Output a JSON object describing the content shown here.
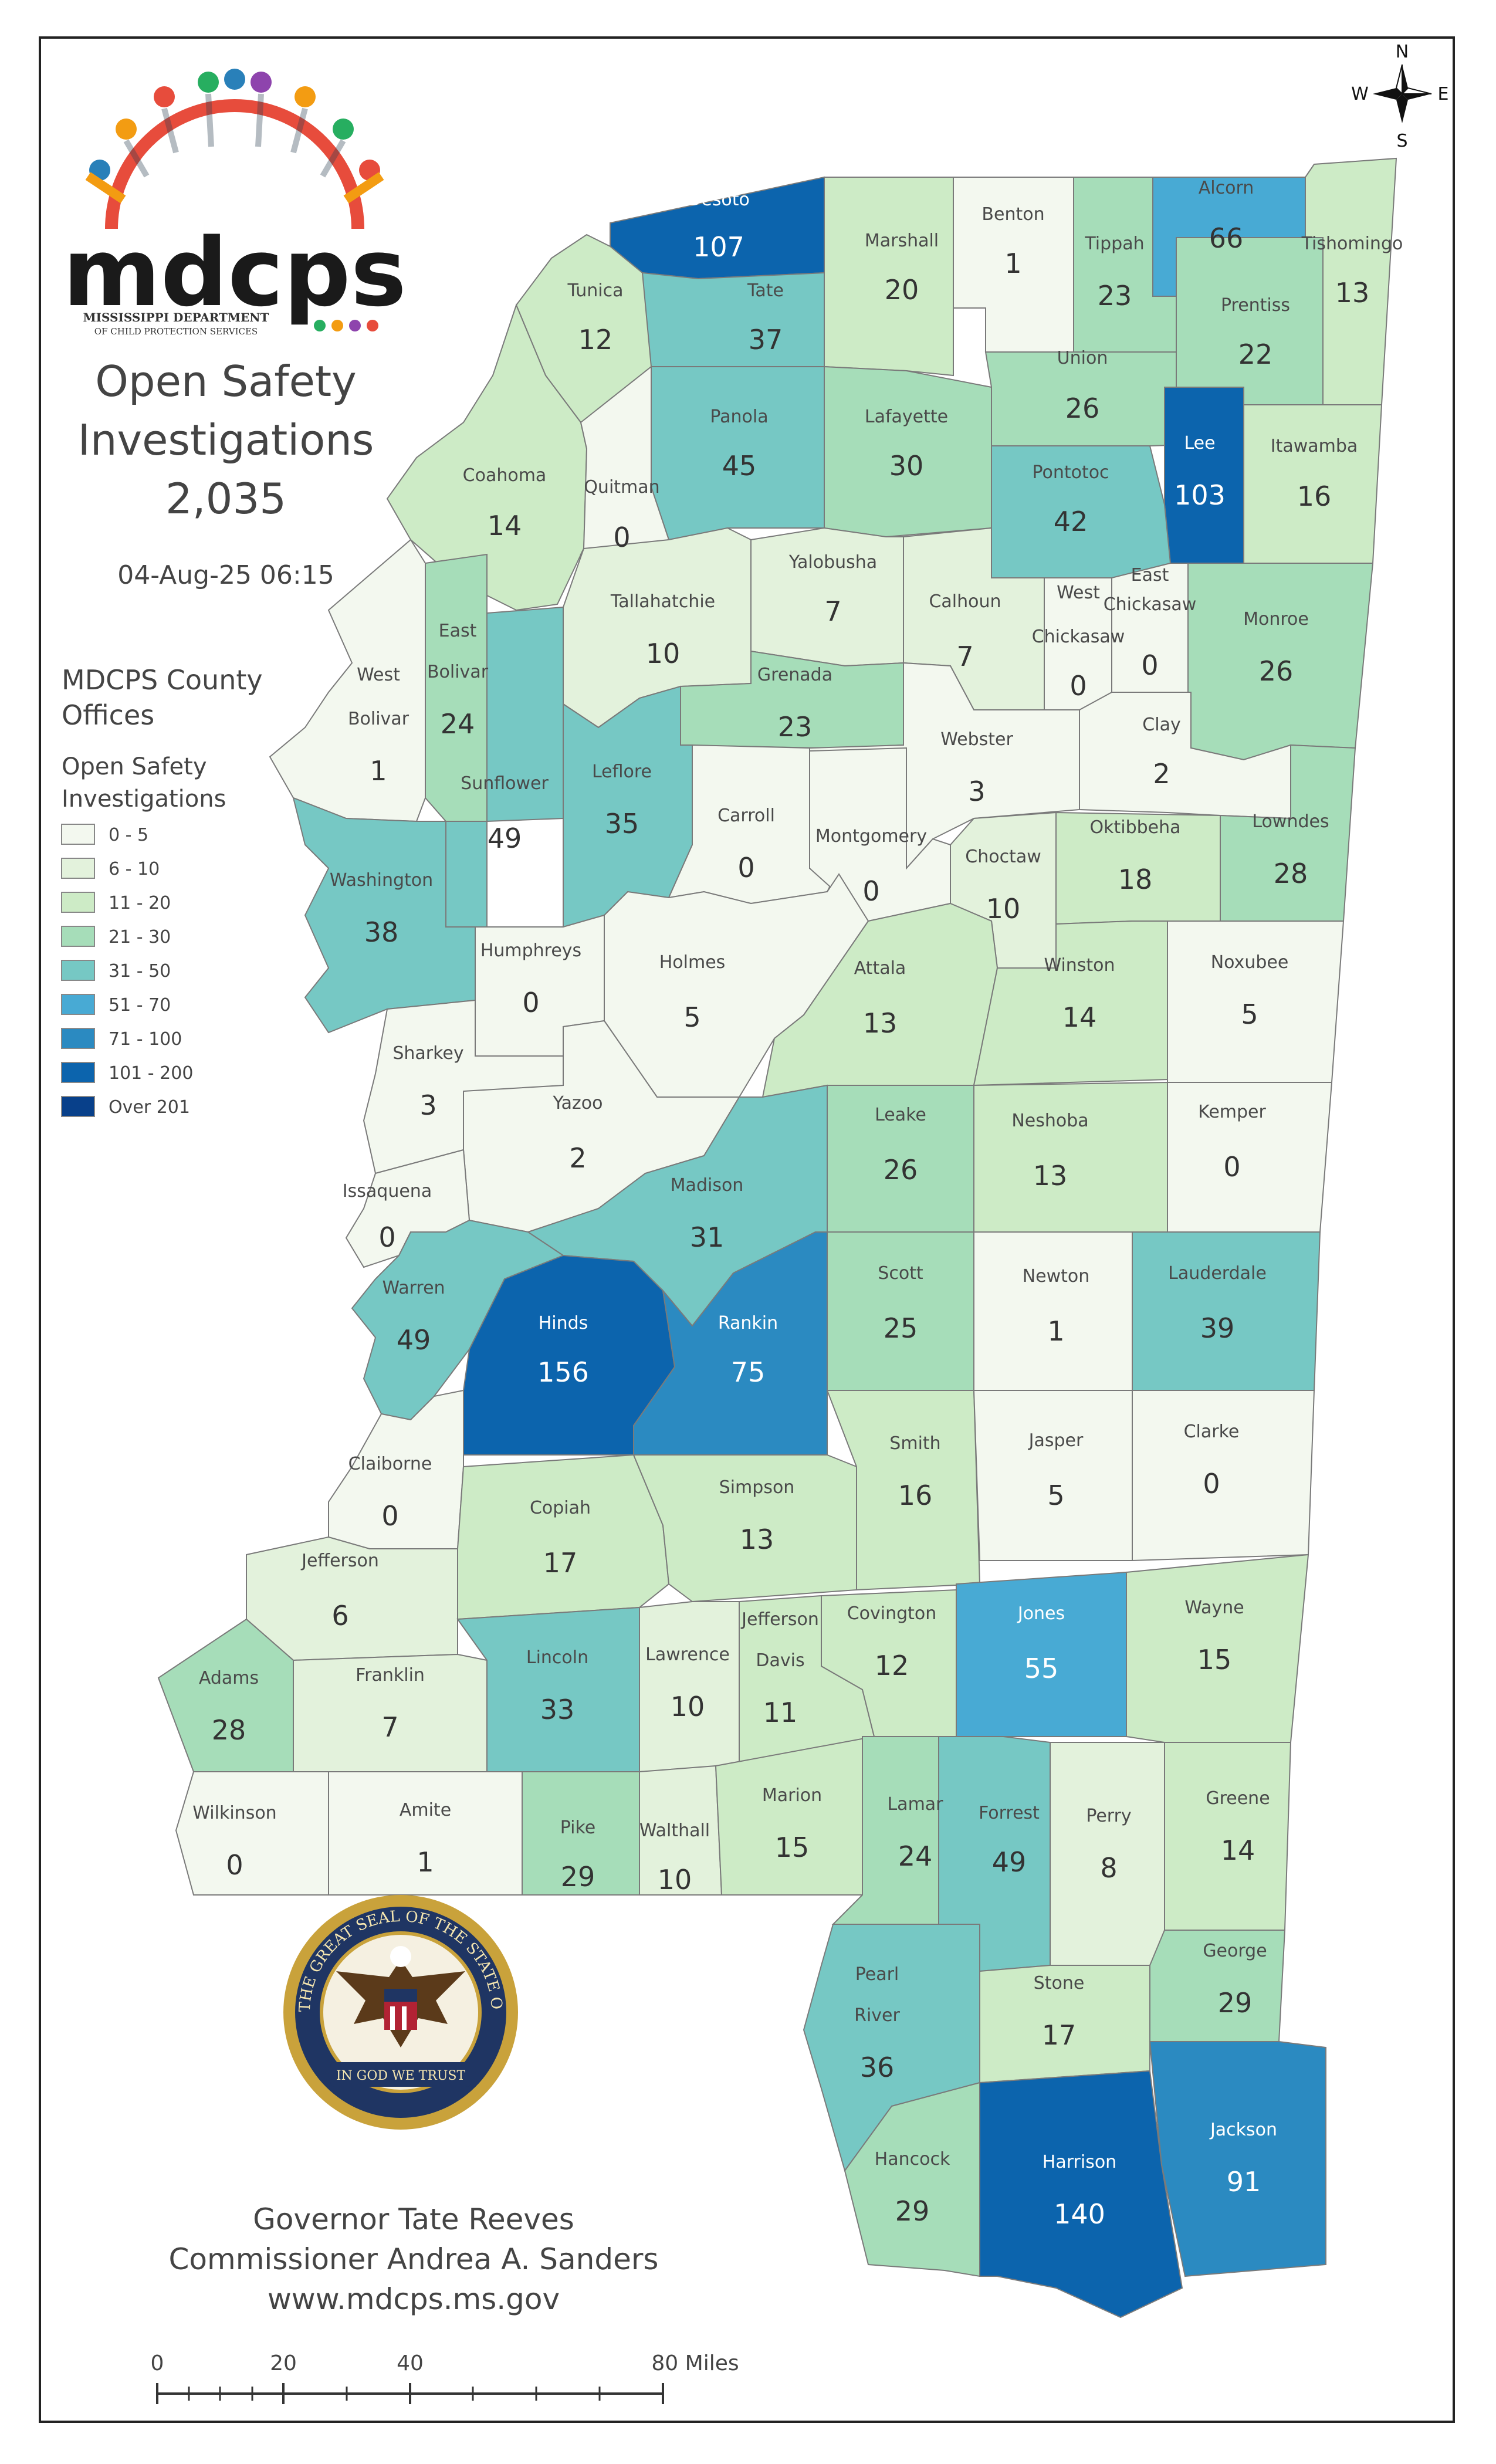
{
  "logo": {
    "wordmark": "mdcps",
    "line1": "MISSISSIPPI DEPARTMENT",
    "line2": "OF CHILD PROTECTION SERVICES"
  },
  "title": {
    "line1": "Open Safety",
    "line2": "Investigations",
    "total": "2,035"
  },
  "timestamp": "04-Aug-25 06:15",
  "legend": {
    "heading1": "MDCPS County",
    "heading1b": "Offices",
    "heading2": "Open Safety",
    "heading2b": "Investigations",
    "items": [
      {
        "label": "0 - 5",
        "color": "#f3f8ef"
      },
      {
        "label": "6 - 10",
        "color": "#e3f2dc"
      },
      {
        "label": "11 - 20",
        "color": "#cdebc6"
      },
      {
        "label": "21 - 30",
        "color": "#a6ddb9"
      },
      {
        "label": "31 - 50",
        "color": "#76c8c4"
      },
      {
        "label": "51 - 70",
        "color": "#48aad4"
      },
      {
        "label": "71 - 100",
        "color": "#2b8ac1"
      },
      {
        "label": "101 - 200",
        "color": "#0c64ad"
      },
      {
        "label": "Over 201",
        "color": "#08408a"
      }
    ]
  },
  "compass": {
    "n": "N",
    "s": "S",
    "e": "E",
    "w": "W"
  },
  "seal": {
    "outer_text": "THE GREAT SEAL OF THE STATE OF MISSISSIPPI",
    "motto": "IN GOD WE TRUST"
  },
  "footer": {
    "governor": "Governor Tate Reeves",
    "commissioner": "Commissioner Andrea A. Sanders",
    "website": "www.mdcps.ms.gov"
  },
  "scalebar": {
    "t0": "0",
    "t1": "20",
    "t2": "40",
    "t3": "80 Miles"
  },
  "counties": [
    {
      "name": "Desoto",
      "value": 107,
      "color": "#0c64ad",
      "light": true
    },
    {
      "name": "Marshall",
      "value": 20,
      "color": "#cdebc6"
    },
    {
      "name": "Benton",
      "value": 1,
      "color": "#f3f8ef"
    },
    {
      "name": "Tippah",
      "value": 23,
      "color": "#a6ddb9"
    },
    {
      "name": "Alcorn",
      "value": 66,
      "color": "#48aad4"
    },
    {
      "name": "Tishomingo",
      "value": 13,
      "color": "#cdebc6"
    },
    {
      "name": "Tunica",
      "value": 12,
      "color": "#cdebc6"
    },
    {
      "name": "Tate",
      "value": 37,
      "color": "#76c8c4"
    },
    {
      "name": "Prentiss",
      "value": 22,
      "color": "#a6ddb9"
    },
    {
      "name": "Union",
      "value": 26,
      "color": "#a6ddb9"
    },
    {
      "name": "Panola",
      "value": 45,
      "color": "#76c8c4"
    },
    {
      "name": "Lafayette",
      "value": 30,
      "color": "#a6ddb9"
    },
    {
      "name": "Lee",
      "value": 103,
      "color": "#0c64ad",
      "light": true
    },
    {
      "name": "Itawamba",
      "value": 16,
      "color": "#cdebc6"
    },
    {
      "name": "Coahoma",
      "value": 14,
      "color": "#cdebc6"
    },
    {
      "name": "Quitman",
      "value": 0,
      "color": "#f3f8ef"
    },
    {
      "name": "Pontotoc",
      "value": 42,
      "color": "#76c8c4"
    },
    {
      "name": "Yalobusha",
      "value": 7,
      "color": "#e3f2dc"
    },
    {
      "name": "Calhoun",
      "value": 7,
      "color": "#e3f2dc"
    },
    {
      "name": "West Chickasaw",
      "value": 0,
      "color": "#f3f8ef"
    },
    {
      "name": "East Chickasaw",
      "value": 0,
      "color": "#f3f8ef"
    },
    {
      "name": "Monroe",
      "value": 26,
      "color": "#a6ddb9"
    },
    {
      "name": "Tallahatchie",
      "value": 10,
      "color": "#e3f2dc"
    },
    {
      "name": "East Bolivar",
      "value": 24,
      "color": "#a6ddb9"
    },
    {
      "name": "West Bolivar",
      "value": 1,
      "color": "#f3f8ef"
    },
    {
      "name": "Grenada",
      "value": 23,
      "color": "#a6ddb9"
    },
    {
      "name": "Webster",
      "value": 3,
      "color": "#f3f8ef"
    },
    {
      "name": "Clay",
      "value": 2,
      "color": "#f3f8ef"
    },
    {
      "name": "Sunflower",
      "value": 49,
      "color": "#76c8c4"
    },
    {
      "name": "Leflore",
      "value": 35,
      "color": "#76c8c4"
    },
    {
      "name": "Carroll",
      "value": 0,
      "color": "#f3f8ef"
    },
    {
      "name": "Montgomery",
      "value": 0,
      "color": "#f3f8ef"
    },
    {
      "name": "Choctaw",
      "value": 10,
      "color": "#e3f2dc"
    },
    {
      "name": "Oktibbeha",
      "value": 18,
      "color": "#cdebc6"
    },
    {
      "name": "Lowndes",
      "value": 28,
      "color": "#a6ddb9"
    },
    {
      "name": "Washington",
      "value": 38,
      "color": "#76c8c4"
    },
    {
      "name": "Humphreys",
      "value": 0,
      "color": "#f3f8ef"
    },
    {
      "name": "Holmes",
      "value": 5,
      "color": "#f3f8ef"
    },
    {
      "name": "Attala",
      "value": 13,
      "color": "#cdebc6"
    },
    {
      "name": "Winston",
      "value": 14,
      "color": "#cdebc6"
    },
    {
      "name": "Noxubee",
      "value": 5,
      "color": "#f3f8ef"
    },
    {
      "name": "Sharkey",
      "value": 3,
      "color": "#f3f8ef"
    },
    {
      "name": "Yazoo",
      "value": 2,
      "color": "#f3f8ef"
    },
    {
      "name": "Leake",
      "value": 26,
      "color": "#a6ddb9"
    },
    {
      "name": "Neshoba",
      "value": 13,
      "color": "#cdebc6"
    },
    {
      "name": "Kemper",
      "value": 0,
      "color": "#f3f8ef"
    },
    {
      "name": "Issaquena",
      "value": 0,
      "color": "#f3f8ef"
    },
    {
      "name": "Madison",
      "value": 31,
      "color": "#76c8c4"
    },
    {
      "name": "Warren",
      "value": 49,
      "color": "#76c8c4"
    },
    {
      "name": "Hinds",
      "value": 156,
      "color": "#0c64ad",
      "light": true
    },
    {
      "name": "Rankin",
      "value": 75,
      "color": "#2b8ac1",
      "light": true
    },
    {
      "name": "Scott",
      "value": 25,
      "color": "#a6ddb9"
    },
    {
      "name": "Newton",
      "value": 1,
      "color": "#f3f8ef"
    },
    {
      "name": "Lauderdale",
      "value": 39,
      "color": "#76c8c4"
    },
    {
      "name": "Claiborne",
      "value": 0,
      "color": "#f3f8ef"
    },
    {
      "name": "Copiah",
      "value": 17,
      "color": "#cdebc6"
    },
    {
      "name": "Simpson",
      "value": 13,
      "color": "#cdebc6"
    },
    {
      "name": "Smith",
      "value": 16,
      "color": "#cdebc6"
    },
    {
      "name": "Jasper",
      "value": 5,
      "color": "#f3f8ef"
    },
    {
      "name": "Clarke",
      "value": 0,
      "color": "#f3f8ef"
    },
    {
      "name": "Jefferson",
      "value": 6,
      "color": "#e3f2dc"
    },
    {
      "name": "Adams",
      "value": 28,
      "color": "#a6ddb9"
    },
    {
      "name": "Franklin",
      "value": 7,
      "color": "#e3f2dc"
    },
    {
      "name": "Lincoln",
      "value": 33,
      "color": "#76c8c4"
    },
    {
      "name": "Lawrence",
      "value": 10,
      "color": "#e3f2dc"
    },
    {
      "name": "Jefferson Davis",
      "value": 11,
      "color": "#cdebc6"
    },
    {
      "name": "Covington",
      "value": 12,
      "color": "#cdebc6"
    },
    {
      "name": "Jones",
      "value": 55,
      "color": "#48aad4",
      "light": true
    },
    {
      "name": "Wayne",
      "value": 15,
      "color": "#cdebc6"
    },
    {
      "name": "Wilkinson",
      "value": 0,
      "color": "#f3f8ef"
    },
    {
      "name": "Amite",
      "value": 1,
      "color": "#f3f8ef"
    },
    {
      "name": "Pike",
      "value": 29,
      "color": "#a6ddb9"
    },
    {
      "name": "Walthall",
      "value": 10,
      "color": "#e3f2dc"
    },
    {
      "name": "Marion",
      "value": 15,
      "color": "#cdebc6"
    },
    {
      "name": "Lamar",
      "value": 24,
      "color": "#a6ddb9"
    },
    {
      "name": "Forrest",
      "value": 49,
      "color": "#76c8c4"
    },
    {
      "name": "Perry",
      "value": 8,
      "color": "#e3f2dc"
    },
    {
      "name": "Greene",
      "value": 14,
      "color": "#cdebc6"
    },
    {
      "name": "Pearl River",
      "value": 36,
      "color": "#76c8c4"
    },
    {
      "name": "Stone",
      "value": 17,
      "color": "#cdebc6"
    },
    {
      "name": "George",
      "value": 29,
      "color": "#a6ddb9"
    },
    {
      "name": "Hancock",
      "value": 29,
      "color": "#a6ddb9"
    },
    {
      "name": "Harrison",
      "value": 140,
      "color": "#0c64ad",
      "light": true
    },
    {
      "name": "Jackson",
      "value": 91,
      "color": "#2b8ac1",
      "light": true
    }
  ]
}
